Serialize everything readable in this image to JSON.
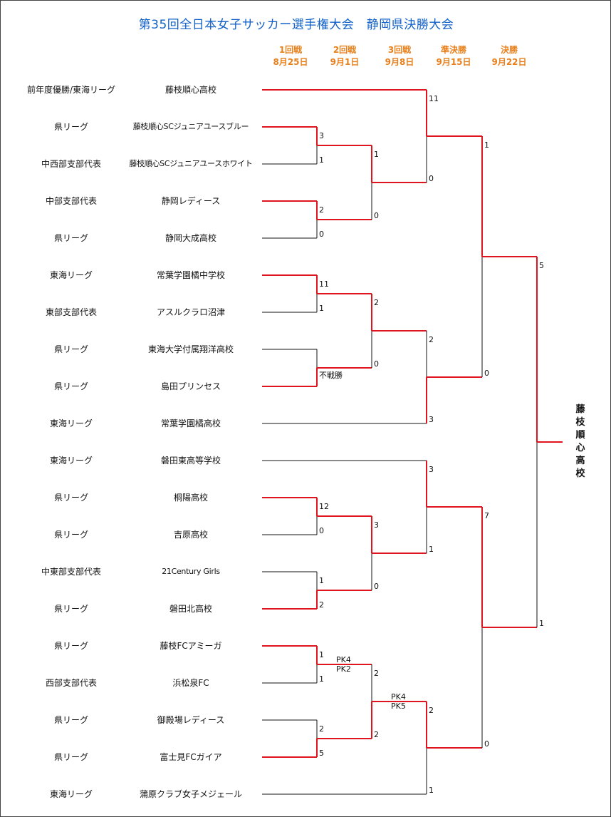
{
  "title": "第35回全日本女子サッカー選手権大会　静岡県決勝大会",
  "colors": {
    "title": "#1060c8",
    "headers": "#e8801c",
    "winner_line": "#e0141e",
    "loser_line": "#111111"
  },
  "rounds": [
    {
      "name": "1回戦",
      "date": "8月25日"
    },
    {
      "name": "2回戦",
      "date": "9月1日"
    },
    {
      "name": "3回戦",
      "date": "9月8日"
    },
    {
      "name": "準決勝",
      "date": "9月15日"
    },
    {
      "name": "決勝",
      "date": "9月22日"
    }
  ],
  "teams": [
    {
      "category": "前年度優勝/東海リーグ",
      "name": "藤枝順心高校"
    },
    {
      "category": "県リーグ",
      "name": "藤枝順心SCジュニアユースブルー"
    },
    {
      "category": "中西部支部代表",
      "name": "藤枝順心SCジュニアユースホワイト"
    },
    {
      "category": "中部支部代表",
      "name": "静岡レディース"
    },
    {
      "category": "県リーグ",
      "name": "静岡大成高校"
    },
    {
      "category": "東海リーグ",
      "name": "常葉学園橘中学校"
    },
    {
      "category": "東部支部代表",
      "name": "アスルクラロ沼津"
    },
    {
      "category": "県リーグ",
      "name": "東海大学付属翔洋高校"
    },
    {
      "category": "県リーグ",
      "name": "島田プリンセス"
    },
    {
      "category": "東海リーグ",
      "name": "常葉学園橘高校"
    },
    {
      "category": "東海リーグ",
      "name": "磐田東高等学校"
    },
    {
      "category": "県リーグ",
      "name": "桐陽高校"
    },
    {
      "category": "県リーグ",
      "name": "吉原高校"
    },
    {
      "category": "中東部支部代表",
      "name": "21Century Girls"
    },
    {
      "category": "県リーグ",
      "name": "磐田北高校"
    },
    {
      "category": "県リーグ",
      "name": "藤枝FCアミーガ"
    },
    {
      "category": "西部支部代表",
      "name": "浜松泉FC"
    },
    {
      "category": "県リーグ",
      "name": "御殿場レディース"
    },
    {
      "category": "県リーグ",
      "name": "富士見FCガイア"
    },
    {
      "category": "東海リーグ",
      "name": "蒲原クラブ女子メジェール"
    }
  ],
  "scores": {
    "r1": [
      {
        "top": "3",
        "bottom": "1"
      },
      {
        "top": "2",
        "bottom": "0"
      },
      {
        "top": "11",
        "bottom": "1"
      },
      {
        "top": "",
        "bottom": "",
        "note": "不戦勝"
      },
      {
        "top": "12",
        "bottom": "0"
      },
      {
        "top": "1",
        "bottom": "2"
      },
      {
        "top": "1",
        "bottom": "1",
        "pk_top": "PK4",
        "pk_bottom": "PK2"
      },
      {
        "top": "2",
        "bottom": "5"
      }
    ],
    "r2": [
      {
        "top": "1",
        "bottom": "0"
      },
      {
        "top": "2",
        "bottom": "0"
      },
      {
        "top": "3",
        "bottom": "0"
      },
      {
        "top": "2",
        "bottom": "2",
        "pk_top": "PK4",
        "pk_bottom": "PK5"
      }
    ],
    "r3": [
      {
        "top": "11",
        "bottom": "0"
      },
      {
        "top": "2",
        "bottom": "3"
      },
      {
        "top": "3",
        "bottom": "1"
      },
      {
        "top": "2",
        "bottom": "1"
      }
    ],
    "sf": [
      {
        "top": "1",
        "bottom": "0"
      },
      {
        "top": "7",
        "bottom": "0"
      }
    ],
    "final": {
      "top": "5",
      "bottom": "1"
    }
  },
  "champion": "藤枝順心高校"
}
